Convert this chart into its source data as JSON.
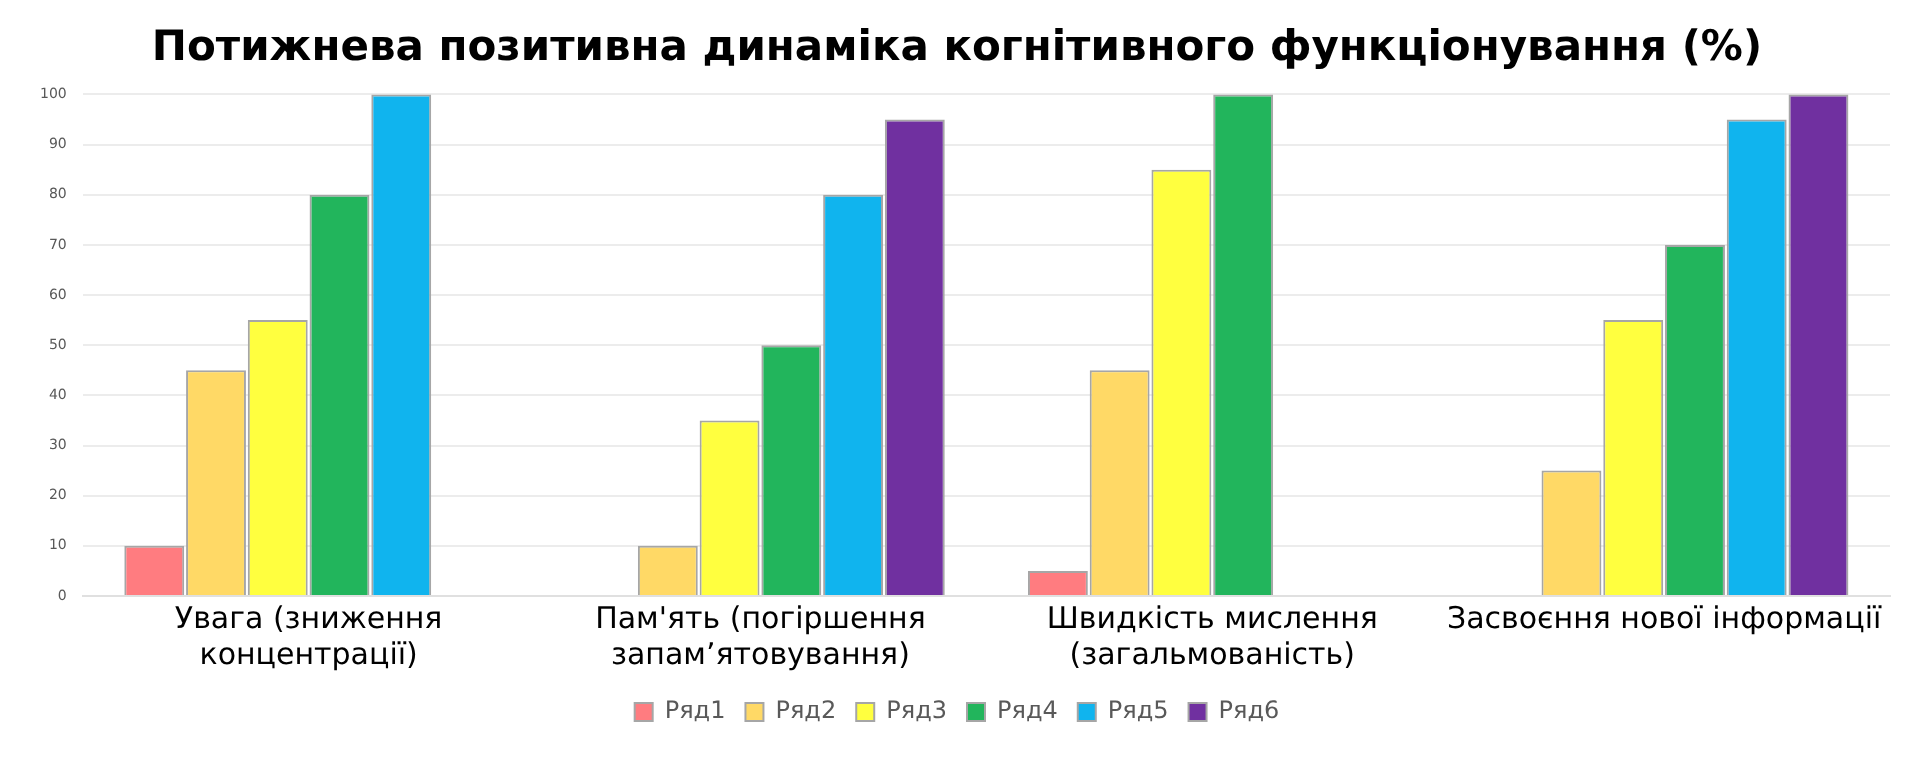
{
  "chart_data": {
    "type": "bar",
    "title": "Потижнева позитивна динаміка когнітивного функціонування (%)",
    "categories": [
      "Увага (зниження концентрації)",
      "Пам'ять (погіршення запам’ятовування)",
      "Швидкість мислення (загальмованість)",
      "Засвоєння нової інформації"
    ],
    "series": [
      {
        "name": "Ряд1",
        "color": "#ff7c80",
        "values": [
          10,
          null,
          5,
          null
        ]
      },
      {
        "name": "Ряд2",
        "color": "#ffd966",
        "values": [
          45,
          10,
          45,
          25
        ]
      },
      {
        "name": "Ряд3",
        "color": "#ffff3f",
        "values": [
          55,
          35,
          85,
          55
        ]
      },
      {
        "name": "Ряд4",
        "color": "#22b55c",
        "values": [
          80,
          50,
          100,
          70
        ]
      },
      {
        "name": "Ряд5",
        "color": "#10b4ee",
        "values": [
          100,
          80,
          null,
          95
        ]
      },
      {
        "name": "Ряд6",
        "color": "#7030a0",
        "values": [
          null,
          95,
          null,
          100
        ]
      }
    ],
    "ylim": [
      0,
      100
    ],
    "yticks": [
      0,
      10,
      20,
      30,
      40,
      50,
      60,
      70,
      80,
      90,
      100
    ],
    "grid": "y",
    "legend": "bottom"
  }
}
